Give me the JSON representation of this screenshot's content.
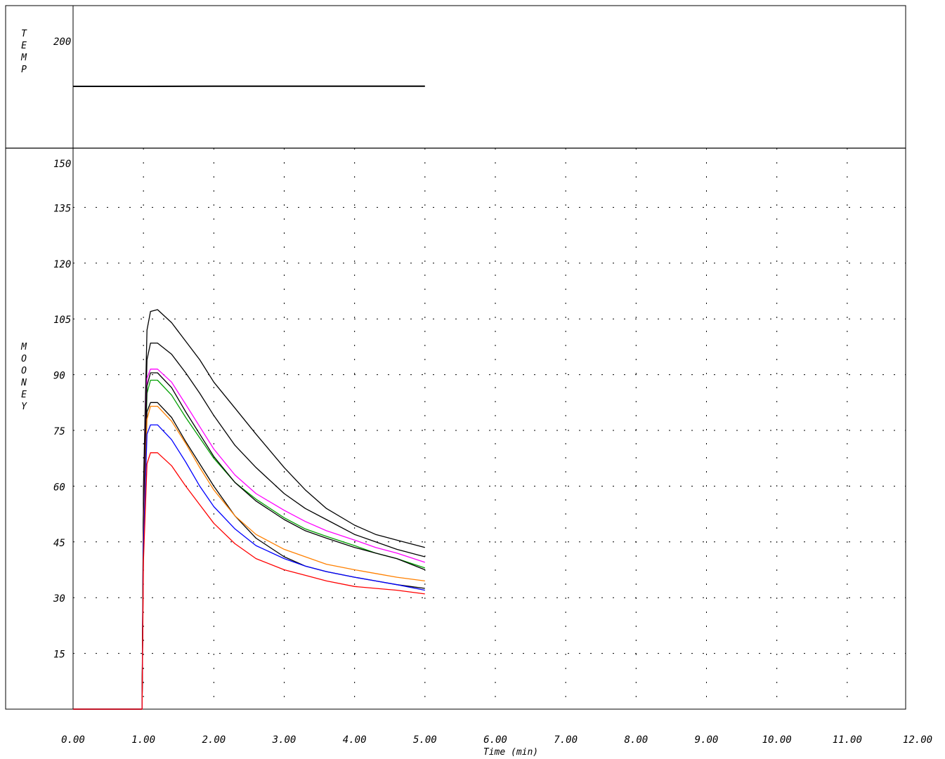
{
  "chart_data": [
    {
      "type": "line",
      "panel": "temperature",
      "ylabel": "TEMP",
      "y_tick_labels": [
        "200"
      ],
      "ylim": [
        140,
        215
      ],
      "grid": false,
      "series": [
        {
          "color": "#000000",
          "x": [
            0.0,
            1.0,
            2.0,
            3.0,
            4.0,
            5.0
          ],
          "y": [
            172.5,
            172.5,
            172.6,
            172.6,
            172.6,
            172.6
          ]
        }
      ]
    },
    {
      "type": "line",
      "panel": "mooney",
      "ylabel": "MOONEY",
      "xlabel": "Time  (min)",
      "xlim": [
        0,
        12
      ],
      "ylim": [
        0,
        150
      ],
      "x_tick_labels": [
        "0.00",
        "1.00",
        "2.00",
        "3.00",
        "4.00",
        "5.00",
        "6.00",
        "7.00",
        "8.00",
        "9.00",
        "10.00",
        "11.00",
        "12.00"
      ],
      "y_tick_labels": [
        "15",
        "30",
        "45",
        "60",
        "75",
        "90",
        "105",
        "120",
        "135",
        "150"
      ],
      "grid": true,
      "series": [
        {
          "color": "#000000",
          "x": [
            0.0,
            0.98,
            1.0,
            1.05,
            1.1,
            1.2,
            1.4,
            1.6,
            1.8,
            2.0,
            2.3,
            2.6,
            3.0,
            3.3,
            3.6,
            4.0,
            4.3,
            4.6,
            5.0
          ],
          "y": [
            0,
            0,
            60,
            102,
            107,
            107.5,
            104,
            99,
            94,
            88,
            81,
            74,
            65,
            59,
            54,
            49.5,
            47,
            45.5,
            43.5
          ]
        },
        {
          "color": "#000000",
          "x": [
            0.0,
            0.98,
            1.0,
            1.05,
            1.1,
            1.2,
            1.4,
            1.6,
            1.8,
            2.0,
            2.3,
            2.6,
            3.0,
            3.3,
            3.6,
            4.0,
            4.3,
            4.6,
            5.0
          ],
          "y": [
            0,
            0,
            55,
            94,
            98.5,
            98.5,
            95.5,
            90.5,
            85,
            79,
            71,
            65,
            58,
            54,
            51,
            47,
            45,
            43,
            41
          ]
        },
        {
          "color": "#ff00ff",
          "x": [
            0.0,
            0.98,
            1.0,
            1.05,
            1.1,
            1.2,
            1.4,
            1.6,
            1.8,
            2.0,
            2.3,
            2.6,
            3.0,
            3.3,
            3.6,
            4.0,
            4.3,
            4.6,
            5.0
          ],
          "y": [
            0,
            0,
            52,
            89,
            91.5,
            91.5,
            88,
            82,
            76,
            70,
            63,
            58,
            53.5,
            50.5,
            48,
            45.5,
            43.5,
            42,
            39.5
          ]
        },
        {
          "color": "#00a000",
          "x": [
            0.0,
            0.98,
            1.0,
            1.05,
            1.1,
            1.2,
            1.4,
            1.6,
            1.8,
            2.0,
            2.3,
            2.6,
            3.0,
            3.3,
            3.6,
            4.0,
            4.3,
            4.6,
            5.0
          ],
          "y": [
            0,
            0,
            50,
            85,
            88.5,
            88.5,
            84.5,
            78.5,
            73,
            67.5,
            61,
            56.5,
            51.5,
            48.5,
            46.5,
            44,
            42,
            40.5,
            38
          ]
        },
        {
          "color": "#000000",
          "x": [
            0.0,
            0.98,
            1.0,
            1.05,
            1.1,
            1.2,
            1.4,
            1.6,
            1.8,
            2.0,
            2.3,
            2.6,
            3.0,
            3.3,
            3.6,
            4.0,
            4.3,
            4.6,
            5.0
          ],
          "y": [
            0,
            0,
            51,
            87,
            90.5,
            90.5,
            86.5,
            80,
            74,
            68,
            61,
            56,
            51,
            48,
            46,
            43.5,
            42,
            40.5,
            37.5
          ]
        },
        {
          "color": "#000000",
          "x": [
            0.0,
            0.98,
            1.0,
            1.05,
            1.1,
            1.2,
            1.4,
            1.6,
            1.8,
            2.0,
            2.3,
            2.6,
            3.0,
            3.3,
            3.6,
            4.0,
            4.3,
            4.6,
            5.0
          ],
          "y": [
            0,
            0,
            48,
            80,
            82.5,
            82.5,
            78.5,
            72,
            66,
            60,
            52,
            46,
            41,
            38.5,
            37,
            35.5,
            34.5,
            33.5,
            32.5
          ]
        },
        {
          "color": "#ff8000",
          "x": [
            0.0,
            0.98,
            1.0,
            1.05,
            1.1,
            1.2,
            1.4,
            1.6,
            1.8,
            2.0,
            2.3,
            2.6,
            3.0,
            3.3,
            3.6,
            4.0,
            4.3,
            4.6,
            5.0
          ],
          "y": [
            0,
            0,
            46,
            78,
            81.5,
            81.5,
            77.5,
            71.5,
            65,
            59,
            52,
            47,
            43,
            41,
            39,
            37.5,
            36.5,
            35.5,
            34.5
          ]
        },
        {
          "color": "#0000ff",
          "x": [
            0.0,
            0.98,
            1.0,
            1.05,
            1.1,
            1.2,
            1.4,
            1.6,
            1.8,
            2.0,
            2.3,
            2.6,
            3.0,
            3.3,
            3.6,
            4.0,
            4.3,
            4.6,
            5.0
          ],
          "y": [
            0,
            0,
            44,
            74,
            76.5,
            76.5,
            72.5,
            66.5,
            60,
            54.5,
            48.5,
            44,
            40.5,
            38.5,
            37,
            35.5,
            34.5,
            33.5,
            32
          ]
        },
        {
          "color": "#ff0000",
          "x": [
            0.0,
            0.98,
            1.0,
            1.05,
            1.1,
            1.2,
            1.4,
            1.6,
            1.8,
            2.0,
            2.3,
            2.6,
            3.0,
            3.3,
            3.6,
            4.0,
            4.3,
            4.6,
            5.0
          ],
          "y": [
            0,
            0,
            40,
            66,
            69,
            69,
            65.5,
            60,
            55,
            50,
            44.5,
            40.5,
            37.5,
            36,
            34.5,
            33,
            32.5,
            32,
            31
          ]
        }
      ]
    }
  ]
}
